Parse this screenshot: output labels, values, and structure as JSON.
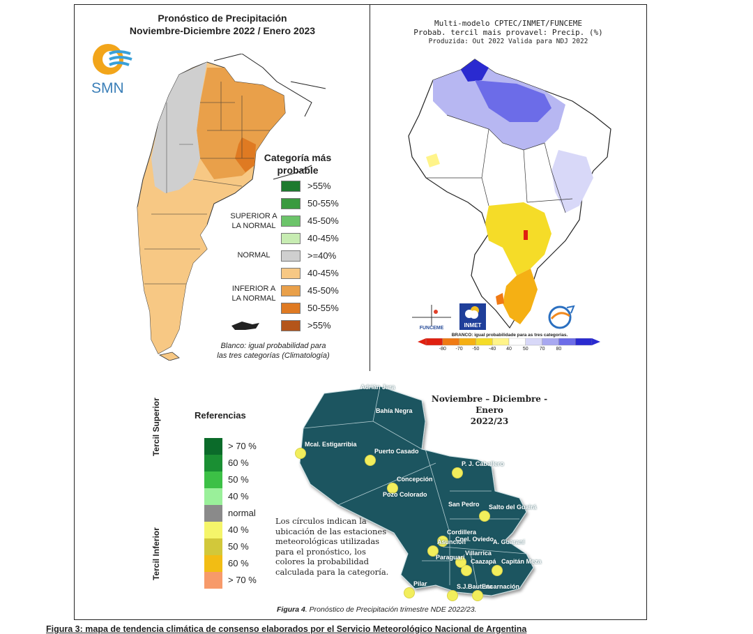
{
  "panel_smn": {
    "title_line1": "Pronóstico de Precipitación",
    "title_line2": "Noviembre-Diciembre 2022 / Enero 2023",
    "logo_text": "SMN",
    "legend_title_line1": "Categoría más",
    "legend_title_line2": "probable",
    "category_superior_line1": "SUPERIOR A",
    "category_superior_line2": "LA NORMAL",
    "category_normal": "NORMAL",
    "category_inferior_line1": "INFERIOR A",
    "category_inferior_line2": "LA NORMAL",
    "legend": [
      {
        "label": ">55%",
        "color": "#1e7a2e"
      },
      {
        "label": "50-55%",
        "color": "#3a9a3f"
      },
      {
        "label": "45-50%",
        "color": "#6cc46a"
      },
      {
        "label": "40-45%",
        "color": "#c7ecb2"
      },
      {
        "label": ">=40%",
        "color": "#cfcfcf"
      },
      {
        "label": "40-45%",
        "color": "#f7c884"
      },
      {
        "label": "45-50%",
        "color": "#e9a04a"
      },
      {
        "label": "50-55%",
        "color": "#df7a22"
      },
      {
        "label": ">55%",
        "color": "#b4551a"
      }
    ],
    "note_line1": "Blanco: igual probabilidad para",
    "note_line2": "las tres categorías (Climatología)"
  },
  "panel_cptec": {
    "title_line1": "Multi-modelo CPTEC/INMET/FUNCEME",
    "title_line2": "Probab. tercil mais provavel: Precip. (%)",
    "title_line3": "Produzida: Out 2022 Valida para NDJ 2022",
    "logo_funceme": "FUNCEME",
    "logo_inmet": "INMET",
    "colorbar_caption": "BRANCO: igual probabilidade para as tres categorias.",
    "colorbar_ticks": [
      "-80",
      "-70",
      "-50",
      "-40",
      "40",
      "50",
      "70",
      "80"
    ],
    "colorbar_colors": [
      "#e02010",
      "#f07a14",
      "#f5b014",
      "#f5dc28",
      "#fff48a",
      "#ffffff",
      "#d8d8f8",
      "#a8a8f0",
      "#6c6ce8",
      "#2a2ad0"
    ]
  },
  "panel_paraguay": {
    "title_line1": "Noviembre – Diciembre - Enero",
    "title_line2": "2022/23",
    "references_title": "Referencias",
    "tercil_superior": "Tercil Superior",
    "tercil_inferior": "Tercil Inferior",
    "references": [
      {
        "label": "> 70 %",
        "color": "#0b6b2a"
      },
      {
        "label": "60 %",
        "color": "#1a8f33"
      },
      {
        "label": "50 %",
        "color": "#3cc046"
      },
      {
        "label": "40 %",
        "color": "#9af09a"
      },
      {
        "label": "normal",
        "color": "#8a8a8a"
      },
      {
        "label": "40 %",
        "color": "#f5f56a"
      },
      {
        "label": "50 %",
        "color": "#d2c83a"
      },
      {
        "label": "60 %",
        "color": "#f2bd14"
      },
      {
        "label": "> 70 %",
        "color": "#f79a6a"
      }
    ],
    "explanation_lines": [
      "Los círculos indican la",
      "ubicación de las estaciones",
      "meteorológicas utilizadas",
      "para el pronóstico, los",
      "colores la probabilidad",
      "calculada para la categoría."
    ],
    "stations": [
      "Adrián Jara",
      "Bahía Negra",
      "Mcal. Estigarribia",
      "Puerto Casado",
      "P. J. Caballero",
      "Concepción",
      "Pozo Colorado",
      "San Pedro",
      "Salto del Guairá",
      "Cordillera",
      "Asunción",
      "Cnel. Oviedo",
      "A. Guaraní",
      "Villarrica",
      "Paraguarí",
      "Caazapá",
      "Capitán Meza",
      "Pilar",
      "S.J.Bautista",
      "Encarnación"
    ],
    "caption_label": "Figura 4",
    "caption_text": ". Pronóstico de Precipitación trimestre NDE 2022/23."
  },
  "bottom_caption": "Figura 3: mapa de tendencia climática de consenso elaborados por el Servicio Meteorológico Nacional de Argentina"
}
